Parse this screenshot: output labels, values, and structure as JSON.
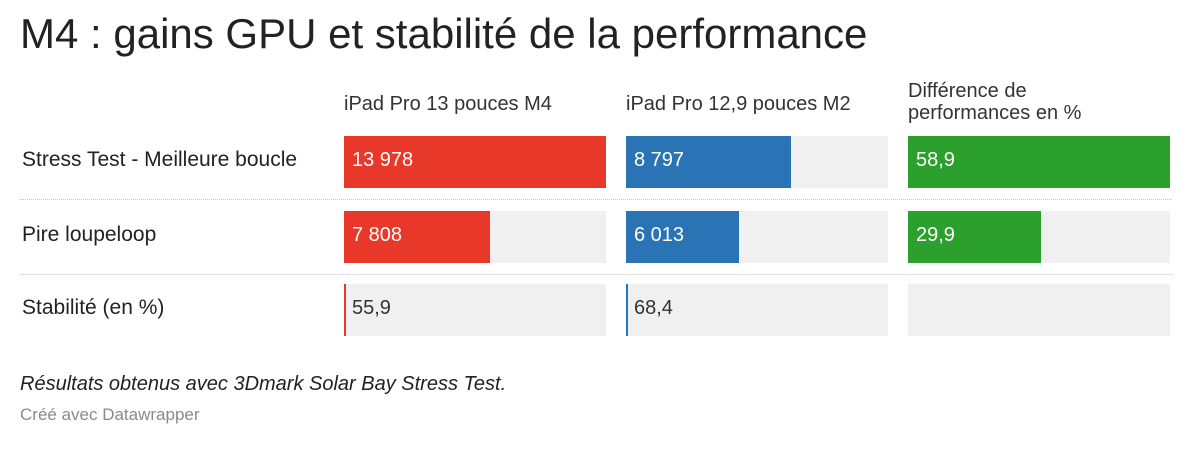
{
  "chart_data": {
    "type": "table",
    "title": "M4 : gains GPU et stabilité de la performance",
    "columns": [
      {
        "label": "iPad Pro 13 pouces M4",
        "color": "#e8382a",
        "max": 13978
      },
      {
        "label": "iPad Pro 12,9 pouces M2",
        "color": "#2a74b6",
        "max": 13978
      },
      {
        "label": "Différence de performances en %",
        "color": "#2ca02c",
        "max": 58.9
      }
    ],
    "rows": [
      {
        "label": "Stress Test - Meilleure boucle",
        "values": [
          13978,
          8797,
          58.9
        ],
        "display": [
          "13 978",
          "8 797",
          "58,9"
        ]
      },
      {
        "label": "Pire loupeloop",
        "values": [
          7808,
          6013,
          29.9
        ],
        "display": [
          "7 808",
          "6 013",
          "29,9"
        ]
      },
      {
        "label": "Stabilité (en %)",
        "values": [
          55.9,
          68.4,
          null
        ],
        "display": [
          "55,9",
          "68,4",
          ""
        ]
      }
    ],
    "notes": "Résultats obtenus avec 3Dmark Solar Bay Stress Test.",
    "source": "Créé avec Datawrapper"
  }
}
